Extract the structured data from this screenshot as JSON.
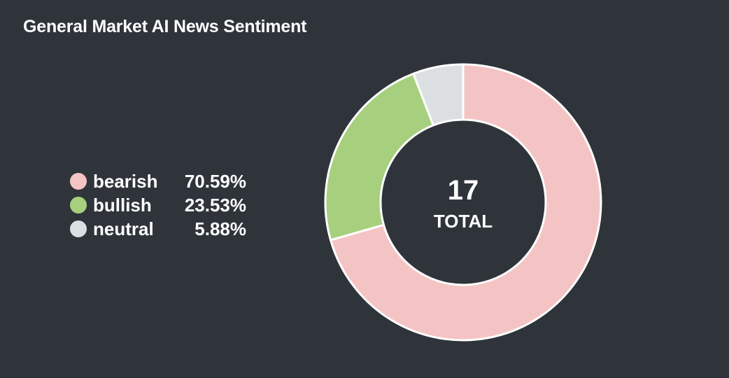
{
  "chart_data": {
    "type": "pie",
    "title": "General Market AI News Sentiment",
    "donut": true,
    "center": {
      "value": "17",
      "label": "TOTAL"
    },
    "legend_position": "left",
    "slices": [
      {
        "label": "bearish",
        "value": 70.59,
        "display": "70.59%",
        "color": "#f4c4c4"
      },
      {
        "label": "bullish",
        "value": 23.53,
        "display": "23.53%",
        "color": "#a7d07e"
      },
      {
        "label": "neutral",
        "value": 5.88,
        "display": "5.88%",
        "color": "#dcdfe2"
      }
    ]
  }
}
